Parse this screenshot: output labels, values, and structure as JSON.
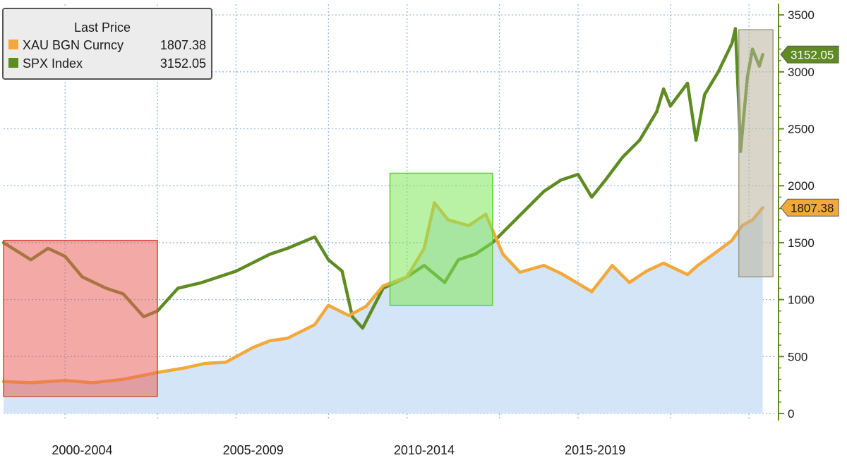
{
  "chart_data": {
    "type": "line",
    "legend": {
      "title": "Last Price",
      "placement": "top-left",
      "entries": [
        {
          "name": "XAU BGN Curncy",
          "value": "1807.38",
          "color": "#f2a93b"
        },
        {
          "name": "SPX Index",
          "value": "3152.05",
          "color": "#5e8b22"
        }
      ]
    },
    "x_range": [
      1998.7,
      2021.3
    ],
    "y_axis": {
      "position": "right",
      "range": [
        0,
        3600
      ],
      "ticks": [
        "0",
        "500",
        "1000",
        "1500",
        "2000",
        "2500",
        "3000",
        "3500"
      ],
      "tick_values": [
        0,
        500,
        1000,
        1500,
        2000,
        2500,
        3000,
        3500
      ],
      "color": "#5e8b22"
    },
    "categories": [
      {
        "label": "2000-2004",
        "center": 2001.0
      },
      {
        "label": "2005-2009",
        "center": 2006.0
      },
      {
        "label": "2010-2014",
        "center": 2011.0
      },
      {
        "label": "2015-2019",
        "center": 2016.0
      }
    ],
    "grid": true,
    "grid_color": "#8fb8e0",
    "area_fill_color": "#d4e5f7",
    "series": [
      {
        "name": "XAU BGN Curncy",
        "color": "#f2a93b",
        "last_value": "1807.38",
        "x": [
          1998.7,
          1999.5,
          2000.5,
          2001.3,
          2002.2,
          2003.2,
          2004.0,
          2004.6,
          2005.2,
          2006.0,
          2006.5,
          2007.0,
          2007.8,
          2008.2,
          2008.8,
          2009.3,
          2009.8,
          2010.5,
          2011.0,
          2011.3,
          2011.7,
          2012.3,
          2012.8,
          2013.3,
          2013.8,
          2014.5,
          2015.0,
          2015.9,
          2016.5,
          2017.0,
          2017.5,
          2018.0,
          2018.7,
          2019.0,
          2019.6,
          2020.0,
          2020.3,
          2020.6,
          2020.9
        ],
        "values": [
          280,
          270,
          290,
          270,
          300,
          360,
          400,
          440,
          450,
          580,
          640,
          660,
          780,
          950,
          860,
          940,
          1120,
          1200,
          1450,
          1850,
          1700,
          1650,
          1750,
          1400,
          1240,
          1300,
          1230,
          1070,
          1300,
          1150,
          1250,
          1320,
          1220,
          1300,
          1430,
          1520,
          1650,
          1700,
          1807.38
        ]
      },
      {
        "name": "SPX Index",
        "color": "#5e8b22",
        "last_value": "3152.05",
        "x": [
          1998.7,
          1999.5,
          2000.0,
          2000.5,
          2001.0,
          2001.7,
          2002.2,
          2002.8,
          2003.2,
          2003.8,
          2004.5,
          2005.5,
          2006.5,
          2007.0,
          2007.8,
          2008.2,
          2008.6,
          2008.9,
          2009.2,
          2009.8,
          2010.5,
          2011.0,
          2011.6,
          2012.0,
          2012.5,
          2013.0,
          2013.5,
          2014.0,
          2014.5,
          2015.0,
          2015.5,
          2015.9,
          2016.3,
          2016.8,
          2017.3,
          2017.8,
          2018.0,
          2018.2,
          2018.7,
          2018.95,
          2019.2,
          2019.6,
          2020.0,
          2020.1,
          2020.2,
          2020.25,
          2020.45,
          2020.6,
          2020.8,
          2020.9
        ],
        "values": [
          1500,
          1350,
          1450,
          1380,
          1200,
          1100,
          1050,
          850,
          900,
          1100,
          1150,
          1250,
          1400,
          1450,
          1550,
          1350,
          1250,
          850,
          750,
          1100,
          1200,
          1300,
          1150,
          1350,
          1400,
          1500,
          1650,
          1800,
          1950,
          2050,
          2100,
          1900,
          2050,
          2250,
          2400,
          2650,
          2850,
          2700,
          2900,
          2400,
          2800,
          3000,
          3250,
          3380,
          2700,
          2300,
          2950,
          3200,
          3050,
          3152.05
        ]
      }
    ],
    "shaded_regions": [
      {
        "x": [
          1998.7,
          2003.2
        ],
        "y": [
          150,
          1520
        ],
        "fill": "#e9635c",
        "opacity": 0.55,
        "stroke": "#d9483f"
      },
      {
        "x": [
          2010.0,
          2013.0
        ],
        "y": [
          950,
          2110
        ],
        "fill": "#7fe85b",
        "opacity": 0.55,
        "stroke": "#5fcc3a"
      },
      {
        "x": [
          2020.2,
          2021.2
        ],
        "y": [
          1200,
          3370
        ],
        "fill": "#b9b49d",
        "opacity": 0.55,
        "stroke": "#9e9a82"
      }
    ],
    "value_tags": [
      {
        "text": "3152.05",
        "value": 3152.05,
        "fill": "#5e8b22",
        "text_color": "#ffffff"
      },
      {
        "text": "1807.38",
        "value": 1807.38,
        "fill": "#f2a93b",
        "text_color": "#1a1a1a"
      }
    ]
  }
}
